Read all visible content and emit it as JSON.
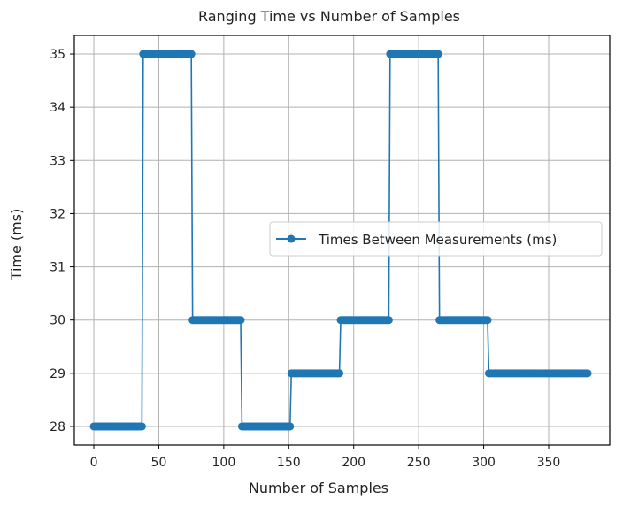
{
  "chart_data": {
    "type": "line",
    "title": "Ranging Time vs Number of Samples",
    "xlabel": "Number of Samples",
    "ylabel": "Time (ms)",
    "xlim": [
      -15,
      397
    ],
    "ylim": [
      27.65,
      35.35
    ],
    "xticks": [
      "0",
      "50",
      "100",
      "150",
      "200",
      "250",
      "300",
      "350"
    ],
    "yticks": [
      "28",
      "29",
      "30",
      "31",
      "32",
      "33",
      "34",
      "35"
    ],
    "grid": true,
    "legend_position": "center-right",
    "series": [
      {
        "name": "Times Between Measurements (ms)",
        "color": "#1f77b4",
        "marker": "circle",
        "segments": [
          {
            "x_start": 0,
            "x_end": 38,
            "y": 28
          },
          {
            "x_start": 38,
            "x_end": 76,
            "y": 35
          },
          {
            "x_start": 76,
            "x_end": 114,
            "y": 30
          },
          {
            "x_start": 114,
            "x_end": 152,
            "y": 28
          },
          {
            "x_start": 152,
            "x_end": 190,
            "y": 29
          },
          {
            "x_start": 190,
            "x_end": 228,
            "y": 30
          },
          {
            "x_start": 228,
            "x_end": 266,
            "y": 35
          },
          {
            "x_start": 266,
            "x_end": 304,
            "y": 30
          },
          {
            "x_start": 304,
            "x_end": 380,
            "y": 29
          }
        ]
      }
    ]
  }
}
